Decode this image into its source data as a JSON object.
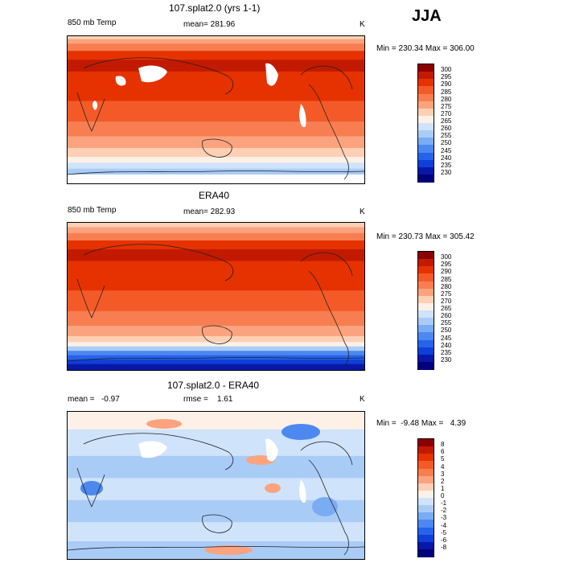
{
  "season": "JJA",
  "chart_data": [
    {
      "type": "heatmap",
      "title": "107.splat2.0 (yrs 1-1)",
      "variable": "850 mb Temp",
      "mean_text": "mean= 281.96",
      "units": "K",
      "minmax_text": "Min = 230.34 Max = 306.00",
      "min": 230.34,
      "max": 306.0,
      "mean": 281.96,
      "colorbar": {
        "labels": [
          "300",
          "295",
          "290",
          "285",
          "280",
          "275",
          "270",
          "265",
          "260",
          "255",
          "250",
          "245",
          "240",
          "235",
          "230"
        ],
        "colors": [
          "#8b0000",
          "#c21a00",
          "#e63200",
          "#f45a28",
          "#f87e52",
          "#fba37f",
          "#fdd0b4",
          "#fdf0e6",
          "#cfe3fb",
          "#a9ccf7",
          "#7aacf3",
          "#4d88f0",
          "#2663ea",
          "#0f3fd8",
          "#0818a6",
          "#00007a"
        ]
      },
      "bands": [
        0.02,
        0.05,
        0.1,
        0.16,
        0.24,
        0.44,
        0.58,
        0.68,
        0.76,
        0.82,
        0.86,
        0.9,
        0.94,
        0.97,
        1.0
      ],
      "band_colors": [
        "#fdd0b4",
        "#fba37f",
        "#f87e52",
        "#e63200",
        "#c21a00",
        "#e63200",
        "#f45a28",
        "#f87e52",
        "#fba37f",
        "#fdd0b4",
        "#fdf0e6",
        "#cfe3fb",
        "#a9ccf7",
        "#ffffff",
        "#ffffff"
      ]
    },
    {
      "type": "heatmap",
      "title": "ERA40",
      "variable": "850 mb Temp",
      "mean_text": "mean= 282.93",
      "units": "K",
      "minmax_text": "Min = 230.73 Max = 305.42",
      "min": 230.73,
      "max": 305.42,
      "mean": 282.93,
      "colorbar": {
        "labels": [
          "300",
          "295",
          "290",
          "285",
          "280",
          "275",
          "270",
          "265",
          "260",
          "255",
          "250",
          "245",
          "240",
          "235",
          "230"
        ],
        "colors": [
          "#8b0000",
          "#c21a00",
          "#e63200",
          "#f45a28",
          "#f87e52",
          "#fba37f",
          "#fdd0b4",
          "#fdf0e6",
          "#cfe3fb",
          "#a9ccf7",
          "#7aacf3",
          "#4d88f0",
          "#2663ea",
          "#0f3fd8",
          "#0818a6",
          "#00007a"
        ]
      },
      "bands": [
        0.03,
        0.07,
        0.12,
        0.18,
        0.26,
        0.46,
        0.6,
        0.7,
        0.77,
        0.81,
        0.84,
        0.87,
        0.9,
        0.93,
        0.96,
        1.0
      ],
      "band_colors": [
        "#fdd0b4",
        "#fba37f",
        "#f87e52",
        "#e63200",
        "#c21a00",
        "#e63200",
        "#f45a28",
        "#f87e52",
        "#fba37f",
        "#fdd0b4",
        "#fdf0e6",
        "#a9ccf7",
        "#4d88f0",
        "#2663ea",
        "#0f3fd8",
        "#0818a6"
      ]
    },
    {
      "type": "heatmap",
      "title": "107.splat2.0 - ERA40",
      "mean_text": "mean =   -0.97",
      "rmse_text": "rmse =    1.61",
      "units": "K",
      "minmax_text": "Min =  -9.48 Max =   4.39",
      "min": -9.48,
      "max": 4.39,
      "mean": -0.97,
      "rmse": 1.61,
      "colorbar": {
        "labels": [
          "8",
          "6",
          "5",
          "4",
          "3",
          "2",
          "1",
          "0",
          "-1",
          "-2",
          "-3",
          "-4",
          "-5",
          "-6",
          "-8"
        ],
        "colors": [
          "#8b0000",
          "#c21a00",
          "#e63200",
          "#f45a28",
          "#f87e52",
          "#fba37f",
          "#fdd0b4",
          "#fdf0e6",
          "#cfe3fb",
          "#a9ccf7",
          "#7aacf3",
          "#4d88f0",
          "#2663ea",
          "#0f3fd8",
          "#0818a6",
          "#00007a"
        ]
      },
      "bands": [
        0.12,
        0.3,
        0.45,
        0.6,
        0.75,
        0.88,
        1.0
      ],
      "band_colors": [
        "#fdf0e6",
        "#cfe3fb",
        "#a9ccf7",
        "#cfe3fb",
        "#a9ccf7",
        "#cfe3fb",
        "#a9ccf7"
      ]
    }
  ]
}
